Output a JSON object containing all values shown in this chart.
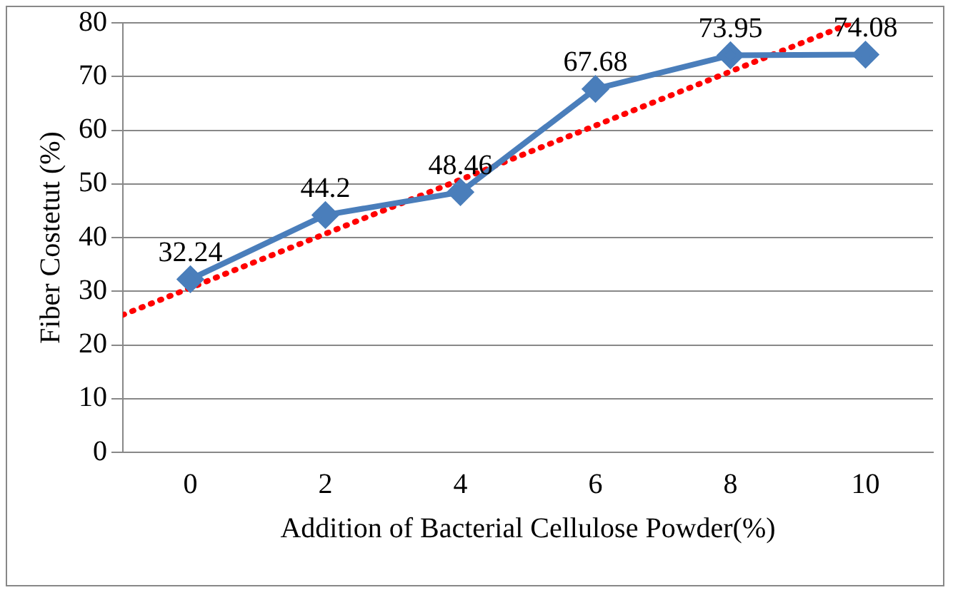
{
  "chart_data": {
    "type": "line",
    "xlabel": "Addition of Bacterial Cellulose Powder(%)",
    "ylabel": "Fiber Costetut (%)",
    "x": [
      0,
      2,
      4,
      6,
      8,
      10
    ],
    "xlim": [
      -1,
      11
    ],
    "xticks": [
      0,
      2,
      4,
      6,
      8,
      10
    ],
    "ylim": [
      0,
      80
    ],
    "yticks": [
      0,
      10,
      20,
      30,
      40,
      50,
      60,
      70,
      80
    ],
    "grid": "y",
    "legend": false,
    "series": [
      {
        "color": "#4a7ebb",
        "marker": "diamond",
        "line_style": "solid",
        "values": [
          32.24,
          44.2,
          48.46,
          67.68,
          73.95,
          74.08
        ],
        "value_labels": [
          "32.24",
          "44.2",
          "48.46",
          "67.68",
          "73.95",
          "74.08"
        ]
      },
      {
        "color": "#ff0000",
        "marker": "none",
        "line_style": "dotted",
        "x": [
          -1,
          9.8
        ],
        "values": [
          25.6,
          80
        ]
      }
    ]
  }
}
